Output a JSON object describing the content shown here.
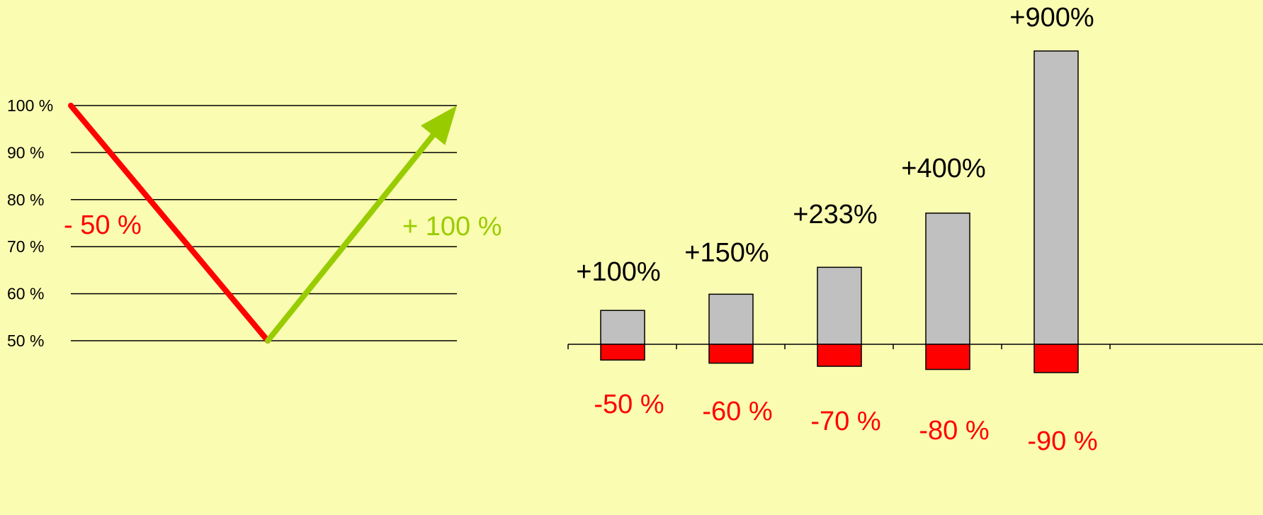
{
  "colors": {
    "background": "#fafcb1",
    "loss": "#ff0000",
    "gain_arrow": "#99cc00",
    "bar_fill": "#c0c0c0",
    "grid": "#000000"
  },
  "chart_data": [
    {
      "type": "line",
      "y_ticks": [
        "100 %",
        "90 %",
        "80 %",
        "70 %",
        "60 %",
        "50 %"
      ],
      "y_values": [
        100,
        90,
        80,
        70,
        60,
        50
      ],
      "ylim": [
        50,
        100
      ],
      "grid": true,
      "series": [
        {
          "points": [
            [
              0,
              100
            ],
            [
              1,
              50
            ]
          ]
        },
        {
          "points": [
            [
              1,
              50
            ],
            [
              2,
              100
            ]
          ]
        }
      ],
      "annotations": {
        "loss_label": "- 50 %",
        "gain_label": "+ 100 %"
      }
    },
    {
      "type": "bar",
      "categories": [
        "-50 %",
        "-60 %",
        "-70 %",
        "-80 %",
        "-90 %"
      ],
      "gain_values": [
        100,
        150,
        233,
        400,
        900
      ],
      "loss_values": [
        -50,
        -60,
        -70,
        -80,
        -90
      ],
      "gain_labels": [
        "+100%",
        "+150%",
        "+233%",
        "+400%",
        "+900%"
      ],
      "loss_labels": [
        "-50 %",
        "-60 %",
        "-70 %",
        "-80 %",
        "-90 %"
      ]
    }
  ]
}
